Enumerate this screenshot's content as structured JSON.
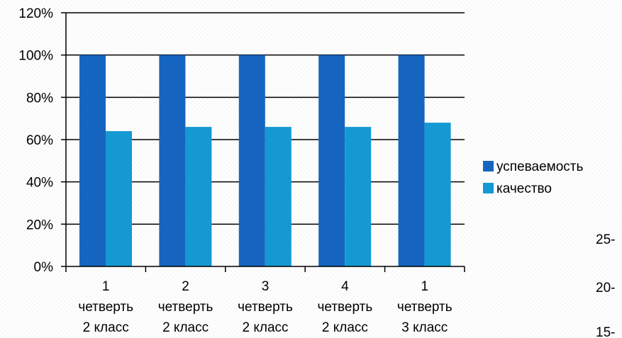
{
  "chart_data": {
    "type": "bar",
    "categories": [
      [
        "1",
        "четверть",
        "2 класс"
      ],
      [
        "2",
        "четверть",
        "2 класс"
      ],
      [
        "3",
        "четверть",
        "2 класс"
      ],
      [
        "4",
        "четверть",
        "2 класс"
      ],
      [
        "1",
        "четверть",
        "3 класс"
      ]
    ],
    "series": [
      {
        "name": "успеваемость",
        "color": "#1565C0",
        "values": [
          100,
          100,
          100,
          100,
          100
        ]
      },
      {
        "name": "качество",
        "color": "#1499D3",
        "values": [
          64,
          66,
          66,
          66,
          68
        ]
      }
    ],
    "ylim": [
      0,
      120
    ],
    "yticks": [
      "0%",
      "20%",
      "40%",
      "60%",
      "80%",
      "100%",
      "120%"
    ],
    "y_tick_values": [
      0,
      20,
      40,
      60,
      80,
      100,
      120
    ],
    "grid": true,
    "legend_position": "right",
    "xlabel": "",
    "ylabel": "",
    "title": ""
  },
  "background_axis": {
    "tick_labels": [
      "25-",
      "20-",
      "15-"
    ]
  }
}
